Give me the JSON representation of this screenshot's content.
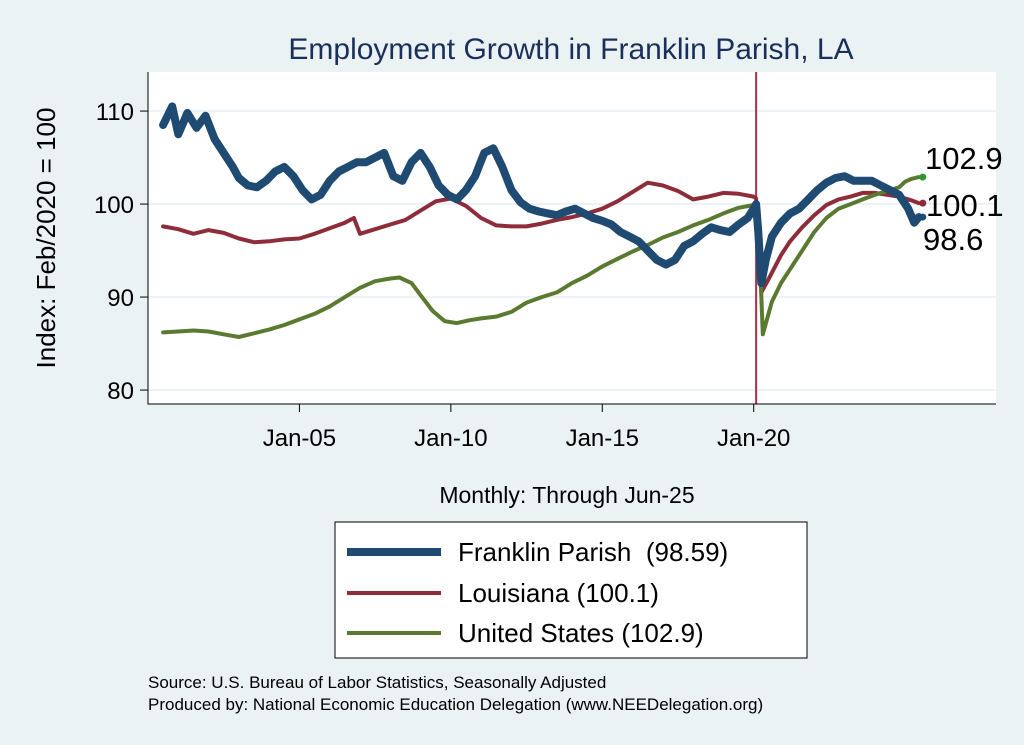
{
  "chart_data": {
    "type": "line",
    "title": "Employment Growth in Franklin Parish, LA",
    "ylabel": "Index: Feb/2020 = 100",
    "xlabel": "Monthly: Through Jun-25",
    "xlim": [
      2000.0,
      2028.0
    ],
    "ylim": [
      78.5,
      114.2
    ],
    "yticks": [
      80,
      90,
      100,
      110
    ],
    "xticks": [
      {
        "label": "Jan-05",
        "value": 2005.0
      },
      {
        "label": "Jan-10",
        "value": 2010.0
      },
      {
        "label": "Jan-15",
        "value": 2015.0
      },
      {
        "label": "Jan-20",
        "value": 2020.0
      }
    ],
    "reference_line": {
      "x": 2020.08,
      "color": "#b22c45"
    },
    "series": [
      {
        "name": "Franklin Parish",
        "legend_label": "Franklin Parish  (98.59)",
        "end_label": "98.6",
        "color": "#1f4a71",
        "width": 8,
        "points": [
          [
            2000.5,
            108.5
          ],
          [
            2000.8,
            110.5
          ],
          [
            2001.0,
            107.5
          ],
          [
            2001.3,
            109.8
          ],
          [
            2001.6,
            108.2
          ],
          [
            2001.9,
            109.5
          ],
          [
            2002.2,
            107.0
          ],
          [
            2002.5,
            105.5
          ],
          [
            2002.8,
            104.0
          ],
          [
            2003.0,
            102.8
          ],
          [
            2003.3,
            102.0
          ],
          [
            2003.6,
            101.8
          ],
          [
            2003.9,
            102.5
          ],
          [
            2004.2,
            103.5
          ],
          [
            2004.5,
            104.0
          ],
          [
            2004.8,
            103.0
          ],
          [
            2005.1,
            101.5
          ],
          [
            2005.4,
            100.5
          ],
          [
            2005.7,
            101.0
          ],
          [
            2006.0,
            102.5
          ],
          [
            2006.3,
            103.5
          ],
          [
            2006.6,
            104.0
          ],
          [
            2006.9,
            104.5
          ],
          [
            2007.2,
            104.5
          ],
          [
            2007.5,
            105.0
          ],
          [
            2007.8,
            105.5
          ],
          [
            2008.1,
            103.0
          ],
          [
            2008.4,
            102.5
          ],
          [
            2008.7,
            104.5
          ],
          [
            2009.0,
            105.5
          ],
          [
            2009.3,
            104.0
          ],
          [
            2009.6,
            102.0
          ],
          [
            2009.9,
            101.0
          ],
          [
            2010.2,
            100.5
          ],
          [
            2010.5,
            101.5
          ],
          [
            2010.8,
            103.0
          ],
          [
            2011.1,
            105.5
          ],
          [
            2011.4,
            106.0
          ],
          [
            2011.7,
            104.0
          ],
          [
            2012.0,
            101.5
          ],
          [
            2012.3,
            100.2
          ],
          [
            2012.6,
            99.5
          ],
          [
            2012.9,
            99.2
          ],
          [
            2013.2,
            99.0
          ],
          [
            2013.5,
            98.8
          ],
          [
            2013.8,
            99.2
          ],
          [
            2014.1,
            99.5
          ],
          [
            2014.4,
            99.0
          ],
          [
            2014.7,
            98.5
          ],
          [
            2015.0,
            98.2
          ],
          [
            2015.3,
            97.8
          ],
          [
            2015.6,
            97.0
          ],
          [
            2015.9,
            96.5
          ],
          [
            2016.2,
            96.0
          ],
          [
            2016.5,
            95.0
          ],
          [
            2016.8,
            94.0
          ],
          [
            2017.1,
            93.5
          ],
          [
            2017.4,
            94.0
          ],
          [
            2017.7,
            95.5
          ],
          [
            2018.0,
            96.0
          ],
          [
            2018.3,
            96.8
          ],
          [
            2018.6,
            97.5
          ],
          [
            2018.9,
            97.2
          ],
          [
            2019.2,
            97.0
          ],
          [
            2019.5,
            97.8
          ],
          [
            2019.8,
            98.5
          ],
          [
            2020.0,
            99.5
          ],
          [
            2020.08,
            100.0
          ],
          [
            2020.15,
            97.0
          ],
          [
            2020.25,
            91.5
          ],
          [
            2020.4,
            94.0
          ],
          [
            2020.6,
            96.5
          ],
          [
            2020.9,
            98.0
          ],
          [
            2021.2,
            99.0
          ],
          [
            2021.5,
            99.5
          ],
          [
            2021.8,
            100.5
          ],
          [
            2022.1,
            101.5
          ],
          [
            2022.4,
            102.3
          ],
          [
            2022.7,
            102.8
          ],
          [
            2023.0,
            103.0
          ],
          [
            2023.3,
            102.5
          ],
          [
            2023.6,
            102.5
          ],
          [
            2023.9,
            102.5
          ],
          [
            2024.2,
            102.0
          ],
          [
            2024.5,
            101.5
          ],
          [
            2024.8,
            101.0
          ],
          [
            2025.1,
            99.5
          ],
          [
            2025.3,
            98.0
          ],
          [
            2025.45,
            98.6
          ]
        ]
      },
      {
        "name": "Louisiana",
        "legend_label": "Louisiana (100.1)",
        "end_label": "100.1",
        "color": "#8e2c3a",
        "width": 4,
        "points": [
          [
            2000.5,
            97.6
          ],
          [
            2001.0,
            97.3
          ],
          [
            2001.5,
            96.8
          ],
          [
            2002.0,
            97.2
          ],
          [
            2002.5,
            96.9
          ],
          [
            2003.0,
            96.3
          ],
          [
            2003.5,
            95.9
          ],
          [
            2004.0,
            96.0
          ],
          [
            2004.5,
            96.2
          ],
          [
            2005.0,
            96.3
          ],
          [
            2005.5,
            96.8
          ],
          [
            2006.0,
            97.4
          ],
          [
            2006.5,
            98.0
          ],
          [
            2006.8,
            98.5
          ],
          [
            2007.0,
            96.8
          ],
          [
            2007.5,
            97.3
          ],
          [
            2008.0,
            97.8
          ],
          [
            2008.5,
            98.3
          ],
          [
            2009.0,
            99.3
          ],
          [
            2009.5,
            100.3
          ],
          [
            2010.0,
            100.6
          ],
          [
            2010.5,
            99.8
          ],
          [
            2011.0,
            98.5
          ],
          [
            2011.5,
            97.7
          ],
          [
            2012.0,
            97.6
          ],
          [
            2012.5,
            97.6
          ],
          [
            2013.0,
            97.9
          ],
          [
            2013.5,
            98.3
          ],
          [
            2014.0,
            98.6
          ],
          [
            2014.5,
            99.0
          ],
          [
            2015.0,
            99.5
          ],
          [
            2015.5,
            100.3
          ],
          [
            2016.0,
            101.3
          ],
          [
            2016.5,
            102.3
          ],
          [
            2017.0,
            102.0
          ],
          [
            2017.5,
            101.4
          ],
          [
            2018.0,
            100.5
          ],
          [
            2018.5,
            100.8
          ],
          [
            2019.0,
            101.2
          ],
          [
            2019.5,
            101.1
          ],
          [
            2020.0,
            100.8
          ],
          [
            2020.08,
            100.6
          ],
          [
            2020.15,
            97.0
          ],
          [
            2020.25,
            90.5
          ],
          [
            2020.5,
            92.0
          ],
          [
            2020.9,
            94.5
          ],
          [
            2021.2,
            96.0
          ],
          [
            2021.6,
            97.5
          ],
          [
            2022.0,
            98.8
          ],
          [
            2022.4,
            99.9
          ],
          [
            2022.8,
            100.5
          ],
          [
            2023.2,
            100.8
          ],
          [
            2023.6,
            101.2
          ],
          [
            2024.0,
            101.2
          ],
          [
            2024.4,
            101.0
          ],
          [
            2024.8,
            100.8
          ],
          [
            2025.2,
            100.4
          ],
          [
            2025.45,
            100.1
          ]
        ]
      },
      {
        "name": "United States",
        "legend_label": "United States (102.9)",
        "end_label": "102.9",
        "color": "#5a7a30",
        "width": 4,
        "points": [
          [
            2000.5,
            86.2
          ],
          [
            2001.0,
            86.3
          ],
          [
            2001.5,
            86.4
          ],
          [
            2002.0,
            86.3
          ],
          [
            2002.5,
            86.0
          ],
          [
            2003.0,
            85.7
          ],
          [
            2003.5,
            86.1
          ],
          [
            2004.0,
            86.5
          ],
          [
            2004.5,
            87.0
          ],
          [
            2005.0,
            87.6
          ],
          [
            2005.5,
            88.2
          ],
          [
            2006.0,
            89.0
          ],
          [
            2006.5,
            90.0
          ],
          [
            2007.0,
            91.0
          ],
          [
            2007.5,
            91.7
          ],
          [
            2008.0,
            92.0
          ],
          [
            2008.3,
            92.1
          ],
          [
            2008.7,
            91.5
          ],
          [
            2009.0,
            90.2
          ],
          [
            2009.4,
            88.5
          ],
          [
            2009.8,
            87.4
          ],
          [
            2010.2,
            87.2
          ],
          [
            2010.6,
            87.5
          ],
          [
            2011.0,
            87.7
          ],
          [
            2011.5,
            87.9
          ],
          [
            2012.0,
            88.4
          ],
          [
            2012.5,
            89.4
          ],
          [
            2013.0,
            90.0
          ],
          [
            2013.5,
            90.5
          ],
          [
            2014.0,
            91.5
          ],
          [
            2014.5,
            92.3
          ],
          [
            2015.0,
            93.3
          ],
          [
            2015.5,
            94.1
          ],
          [
            2016.0,
            94.9
          ],
          [
            2016.5,
            95.6
          ],
          [
            2017.0,
            96.4
          ],
          [
            2017.5,
            97.0
          ],
          [
            2018.0,
            97.7
          ],
          [
            2018.5,
            98.3
          ],
          [
            2019.0,
            99.0
          ],
          [
            2019.5,
            99.6
          ],
          [
            2020.0,
            99.9
          ],
          [
            2020.08,
            100.0
          ],
          [
            2020.15,
            98.5
          ],
          [
            2020.3,
            86.0
          ],
          [
            2020.6,
            89.5
          ],
          [
            2020.9,
            91.5
          ],
          [
            2021.2,
            93.0
          ],
          [
            2021.6,
            95.0
          ],
          [
            2022.0,
            97.0
          ],
          [
            2022.4,
            98.5
          ],
          [
            2022.8,
            99.5
          ],
          [
            2023.2,
            100.0
          ],
          [
            2023.6,
            100.5
          ],
          [
            2024.0,
            101.0
          ],
          [
            2024.4,
            101.4
          ],
          [
            2024.8,
            101.8
          ],
          [
            2025.0,
            102.4
          ],
          [
            2025.2,
            102.7
          ],
          [
            2025.45,
            102.9
          ]
        ]
      }
    ],
    "source_lines": [
      "Source: U.S. Bureau of Labor Statistics, Seasonally Adjusted",
      "Produced by: National Economic Education Delegation (www.NEEDelegation.org)"
    ]
  }
}
